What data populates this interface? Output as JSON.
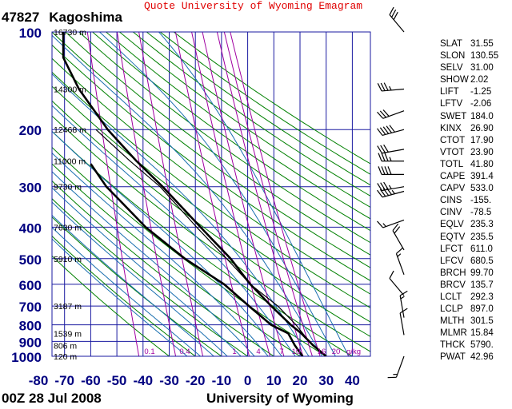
{
  "header": {
    "title": "Quote University of Wyoming Emagram"
  },
  "station": {
    "id": "47827",
    "name": "Kagoshima"
  },
  "footer": {
    "time": "00Z 28 Jul 2008",
    "source": "University of Wyoming"
  },
  "colors": {
    "grid": "#1a1aa0",
    "dry_adiabat": "#008000",
    "moist_adiabat": "#1a6fb0",
    "mixing_ratio": "#a000a0",
    "sounding": "#000000",
    "header": "#e00000"
  },
  "chart_data": {
    "type": "line",
    "title": "",
    "xlabel": "",
    "ylabel": "",
    "xlim": [
      -80,
      40
    ],
    "ylim": [
      1000,
      100
    ],
    "y_scale": "log",
    "grid": true,
    "x_ticks": [
      "-80",
      "-70",
      "-60",
      "-50",
      "-40",
      "-30",
      "-20",
      "-10",
      "0",
      "10",
      "20",
      "30",
      "40"
    ],
    "p_ticks": [
      "100",
      "200",
      "300",
      "400",
      "500",
      "600",
      "700",
      "800",
      "900",
      "1000"
    ],
    "height_labels": [
      {
        "p": 100,
        "label": "16730 m"
      },
      {
        "p": 150,
        "label": "14300 m"
      },
      {
        "p": 200,
        "label": "12468 m"
      },
      {
        "p": 250,
        "label": "11000 m"
      },
      {
        "p": 300,
        "label": "9730 m"
      },
      {
        "p": 400,
        "label": "7630 m"
      },
      {
        "p": 500,
        "label": "5910 m"
      },
      {
        "p": 700,
        "label": "3187 m"
      },
      {
        "p": 850,
        "label": "1539 m"
      },
      {
        "p": 925,
        "label": "806 m"
      },
      {
        "p": 1000,
        "label": "120 m"
      }
    ],
    "mixing_ratio_labels": [
      "0.1",
      "0.4",
      "1",
      "4",
      "7",
      "10",
      "16",
      "20",
      "g/kg"
    ],
    "series": [
      {
        "name": "Temperature",
        "points": [
          [
            1000,
            30.0
          ],
          [
            925,
            25.0
          ],
          [
            850,
            20.5
          ],
          [
            800,
            16.5
          ],
          [
            700,
            9.0
          ],
          [
            600,
            1.0
          ],
          [
            500,
            -6.5
          ],
          [
            400,
            -18.0
          ],
          [
            300,
            -32.5
          ],
          [
            250,
            -42.5
          ],
          [
            200,
            -53.5
          ],
          [
            150,
            -64.5
          ],
          [
            120,
            -70.5
          ],
          [
            100,
            -70.5
          ]
        ]
      },
      {
        "name": "Dewpoint",
        "points": [
          [
            1000,
            21.0
          ],
          [
            925,
            18.0
          ],
          [
            850,
            15.5
          ],
          [
            800,
            9.0
          ],
          [
            700,
            0.5
          ],
          [
            600,
            -9.0
          ],
          [
            500,
            -24.0
          ],
          [
            400,
            -39.0
          ],
          [
            330,
            -49.0
          ],
          [
            300,
            -54.0
          ],
          [
            255,
            -60.0
          ]
        ]
      },
      {
        "name": "Parcel",
        "points": [
          [
            1000,
            30.0
          ],
          [
            900,
            23.5
          ],
          [
            800,
            18.5
          ],
          [
            700,
            11.5
          ],
          [
            600,
            1.0
          ],
          [
            500,
            -8.0
          ],
          [
            400,
            -19.5
          ],
          [
            300,
            -33.5
          ],
          [
            250,
            -45.0
          ],
          [
            200,
            -58.0
          ]
        ]
      }
    ],
    "wind_barbs": [
      {
        "p": 100,
        "dir": 320,
        "spd": 30
      },
      {
        "p": 150,
        "dir": 265,
        "spd": 35
      },
      {
        "p": 175,
        "dir": 250,
        "spd": 30
      },
      {
        "p": 200,
        "dir": 255,
        "spd": 50
      },
      {
        "p": 230,
        "dir": 260,
        "spd": 30
      },
      {
        "p": 250,
        "dir": 270,
        "spd": 35
      },
      {
        "p": 275,
        "dir": 270,
        "spd": 40
      },
      {
        "p": 300,
        "dir": 260,
        "spd": 35
      },
      {
        "p": 310,
        "dir": 255,
        "spd": 45
      },
      {
        "p": 380,
        "dir": 250,
        "spd": 15
      },
      {
        "p": 470,
        "dir": 330,
        "spd": 20
      },
      {
        "p": 560,
        "dir": 340,
        "spd": 15
      },
      {
        "p": 650,
        "dir": 320,
        "spd": 10
      },
      {
        "p": 760,
        "dir": 350,
        "spd": 15
      },
      {
        "p": 860,
        "dir": 350,
        "spd": 10
      },
      {
        "p": 1000,
        "dir": 200,
        "spd": 15
      }
    ]
  },
  "indices": [
    {
      "k": "SLAT",
      "v": "31.55"
    },
    {
      "k": "SLON",
      "v": "130.55"
    },
    {
      "k": "SELV",
      "v": "31.00"
    },
    {
      "k": "SHOW",
      "v": "2.02"
    },
    {
      "k": "LIFT",
      "v": "-1.25"
    },
    {
      "k": "LFTV",
      "v": "-2.06"
    },
    {
      "k": "SWET",
      "v": "184.0"
    },
    {
      "k": "KINX",
      "v": "26.90"
    },
    {
      "k": "CTOT",
      "v": "17.90"
    },
    {
      "k": "VTOT",
      "v": "23.90"
    },
    {
      "k": "TOTL",
      "v": "41.80"
    },
    {
      "k": "CAPE",
      "v": "391.4"
    },
    {
      "k": "CAPV",
      "v": "533.0"
    },
    {
      "k": "CINS",
      "v": "-155."
    },
    {
      "k": "CINV",
      "v": "-78.5"
    },
    {
      "k": "EQLV",
      "v": "235.3"
    },
    {
      "k": "EQTV",
      "v": "235.5"
    },
    {
      "k": "LFCT",
      "v": "611.0"
    },
    {
      "k": "LFCV",
      "v": "680.5"
    },
    {
      "k": "BRCH",
      "v": "99.70"
    },
    {
      "k": "BRCV",
      "v": "135.7"
    },
    {
      "k": "LCLT",
      "v": "292.3"
    },
    {
      "k": "LCLP",
      "v": "897.0"
    },
    {
      "k": "MLTH",
      "v": "301.5"
    },
    {
      "k": "MLMR",
      "v": "15.84"
    },
    {
      "k": "THCK",
      "v": "5790."
    },
    {
      "k": "PWAT",
      "v": "42.96"
    }
  ]
}
